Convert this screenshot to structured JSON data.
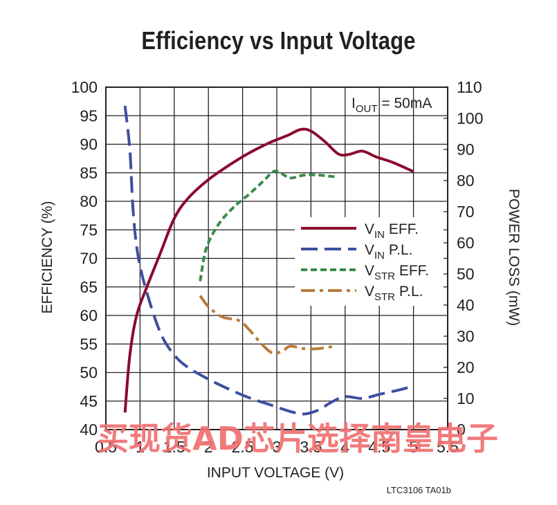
{
  "chart_data": {
    "type": "line",
    "title": "Efficiency vs Input Voltage",
    "xlabel": "INPUT VOLTAGE (V)",
    "ylabel": "EFFICIENCY (%)",
    "y2label": "POWER LOSS (mW)",
    "xlim": [
      0.5,
      5.5
    ],
    "ylim": [
      40,
      100
    ],
    "y2lim": [
      0,
      110
    ],
    "x_ticks": [
      "0.5",
      "1",
      "1.5",
      "2",
      "2.5",
      "3",
      "3.5",
      "4",
      "4.5",
      "5",
      "5.5"
    ],
    "y_ticks": [
      "100",
      "95",
      "90",
      "85",
      "80",
      "75",
      "70",
      "65",
      "60",
      "55",
      "50",
      "45",
      "40"
    ],
    "y2_ticks": [
      "110",
      "100",
      "90",
      "80",
      "70",
      "60",
      "50",
      "40",
      "30",
      "20",
      "10",
      "0"
    ],
    "grid": true,
    "annotation": {
      "prefix": "I",
      "sub": "OUT",
      "suffix": " = 50mA"
    },
    "series": [
      {
        "name": "VIN EFF.",
        "label_main": "V",
        "label_sub": "IN",
        "label_suffix": " EFF.",
        "axis": "left",
        "color": "#8b0a2e",
        "dash": "solid",
        "points": [
          [
            0.78,
            43
          ],
          [
            0.85,
            53
          ],
          [
            0.95,
            60
          ],
          [
            1.1,
            65
          ],
          [
            1.3,
            71
          ],
          [
            1.5,
            77
          ],
          [
            1.7,
            80.5
          ],
          [
            2.0,
            83.8
          ],
          [
            2.3,
            86.3
          ],
          [
            2.6,
            88.5
          ],
          [
            2.9,
            90.3
          ],
          [
            3.15,
            91.5
          ],
          [
            3.35,
            92.6
          ],
          [
            3.5,
            92.3
          ],
          [
            3.7,
            90.5
          ],
          [
            3.9,
            88.3
          ],
          [
            4.05,
            88.2
          ],
          [
            4.25,
            88.8
          ],
          [
            4.45,
            87.8
          ],
          [
            4.7,
            86.8
          ],
          [
            5.0,
            85.2
          ]
        ]
      },
      {
        "name": "VIN P.L.",
        "label_main": "V",
        "label_sub": "IN",
        "label_suffix": " P.L.",
        "axis": "right",
        "color": "#3d4ea0",
        "dash": "long",
        "points": [
          [
            0.78,
            104
          ],
          [
            0.85,
            90
          ],
          [
            0.9,
            70
          ],
          [
            0.97,
            56
          ],
          [
            1.1,
            44
          ],
          [
            1.3,
            31
          ],
          [
            1.5,
            24
          ],
          [
            1.7,
            20
          ],
          [
            2.0,
            16.2
          ],
          [
            2.3,
            13
          ],
          [
            2.6,
            10.2
          ],
          [
            2.9,
            8.0
          ],
          [
            3.2,
            5.8
          ],
          [
            3.4,
            5.0
          ],
          [
            3.6,
            6.2
          ],
          [
            3.8,
            8.8
          ],
          [
            4.0,
            10.6
          ],
          [
            4.25,
            10.0
          ],
          [
            4.5,
            11.3
          ],
          [
            4.8,
            12.8
          ],
          [
            5.0,
            14.0
          ]
        ]
      },
      {
        "name": "VSTR EFF.",
        "label_main": "V",
        "label_sub": "STR",
        "label_suffix": " EFF.",
        "axis": "left",
        "color": "#3a8a48",
        "dash": "short",
        "points": [
          [
            1.88,
            66
          ],
          [
            1.95,
            71
          ],
          [
            2.05,
            74
          ],
          [
            2.2,
            76.8
          ],
          [
            2.4,
            79.3
          ],
          [
            2.6,
            81.3
          ],
          [
            2.8,
            83.5
          ],
          [
            2.95,
            85.2
          ],
          [
            3.05,
            85.0
          ],
          [
            3.2,
            84.1
          ],
          [
            3.4,
            84.6
          ],
          [
            3.6,
            84.6
          ],
          [
            3.85,
            84.3
          ]
        ]
      },
      {
        "name": "VSTR P.L.",
        "label_main": "V",
        "label_sub": "STR",
        "label_suffix": " P.L.",
        "axis": "right",
        "color": "#b87a3a",
        "dash": "dashdot",
        "points": [
          [
            1.88,
            43
          ],
          [
            2.0,
            39.5
          ],
          [
            2.2,
            36.2
          ],
          [
            2.45,
            35.0
          ],
          [
            2.6,
            32.0
          ],
          [
            2.8,
            27.0
          ],
          [
            2.95,
            24.5
          ],
          [
            3.1,
            25.5
          ],
          [
            3.2,
            26.8
          ],
          [
            3.4,
            26.0
          ],
          [
            3.6,
            26.0
          ],
          [
            3.85,
            26.8
          ]
        ]
      }
    ]
  },
  "watermark": "买现货AD芯片选择南皇电子",
  "figure_code": "LTC3106 TA01b"
}
